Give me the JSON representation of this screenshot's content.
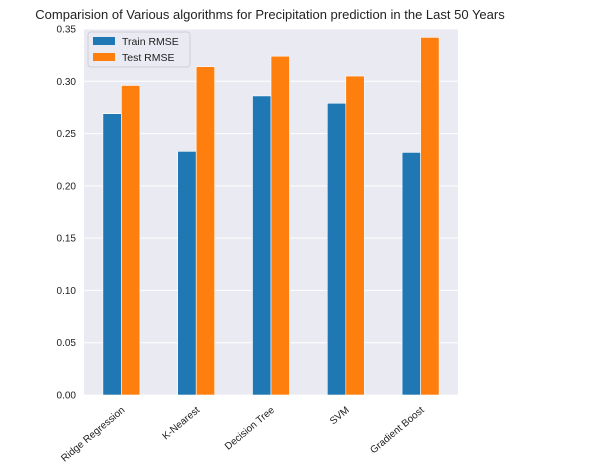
{
  "chart_data": {
    "type": "bar",
    "title": "Comparision of Various algorithms for Precipitation prediction in the Last 50 Years",
    "xlabel": "",
    "ylabel": "",
    "categories": [
      "Ridge Regression",
      "K-Nearest",
      "Decision Tree",
      "SVM",
      "Gradient Boost"
    ],
    "series": [
      {
        "name": "Train RMSE",
        "values": [
          0.269,
          0.233,
          0.286,
          0.279,
          0.232
        ],
        "color": "#1f77b4"
      },
      {
        "name": "Test RMSE",
        "values": [
          0.296,
          0.314,
          0.324,
          0.305,
          0.342
        ],
        "color": "#ff7f0e"
      }
    ],
    "ylim": [
      0,
      0.35
    ],
    "yticks": [
      "0.00",
      "0.05",
      "0.10",
      "0.15",
      "0.20",
      "0.25",
      "0.30",
      "0.35"
    ],
    "grid": true,
    "background": "#eaeaf2",
    "legend_position": "top-left"
  }
}
